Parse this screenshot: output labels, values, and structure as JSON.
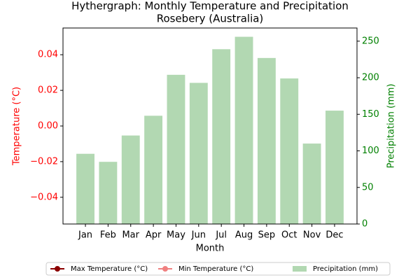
{
  "chart_data": {
    "type": "combo",
    "title": "Hythergraph: Monthly Temperature and Precipitation",
    "subtitle": "Rosebery (Australia)",
    "xlabel": "Month",
    "ylabel": "Temperature (°C)",
    "y2label": "Precipitation (mm)",
    "ylabel_color": "#ff0000",
    "y2label_color": "#008000",
    "categories": [
      "Jan",
      "Feb",
      "Mar",
      "Apr",
      "May",
      "Jun",
      "Jul",
      "Aug",
      "Sep",
      "Oct",
      "Nov",
      "Dec"
    ],
    "series": [
      {
        "name": "Max Temperature (°C)",
        "type": "line",
        "color": "#8b0000",
        "values": [
          null,
          null,
          null,
          null,
          null,
          null,
          null,
          null,
          null,
          null,
          null,
          null
        ]
      },
      {
        "name": "Min Temperature (°C)",
        "type": "line",
        "color": "#f08080",
        "values": [
          null,
          null,
          null,
          null,
          null,
          null,
          null,
          null,
          null,
          null,
          null,
          null
        ]
      },
      {
        "name": "Precipitation (mm)",
        "type": "bar",
        "axis": "y2",
        "color": "#b2d8b2",
        "values": [
          96,
          85,
          121,
          148,
          204,
          193,
          239,
          256,
          227,
          199,
          110,
          155
        ]
      }
    ],
    "ylim": [
      -0.055,
      0.055
    ],
    "yticks": [
      {
        "value": -0.04,
        "label": "−0.04"
      },
      {
        "value": -0.02,
        "label": "−0.02"
      },
      {
        "value": 0,
        "label": "0.00"
      },
      {
        "value": 0.02,
        "label": "0.02"
      },
      {
        "value": 0.04,
        "label": "0.04"
      }
    ],
    "y2lim": [
      0,
      268
    ],
    "y2ticks": [
      0,
      50,
      100,
      150,
      200,
      250
    ],
    "legend": "bottom"
  }
}
